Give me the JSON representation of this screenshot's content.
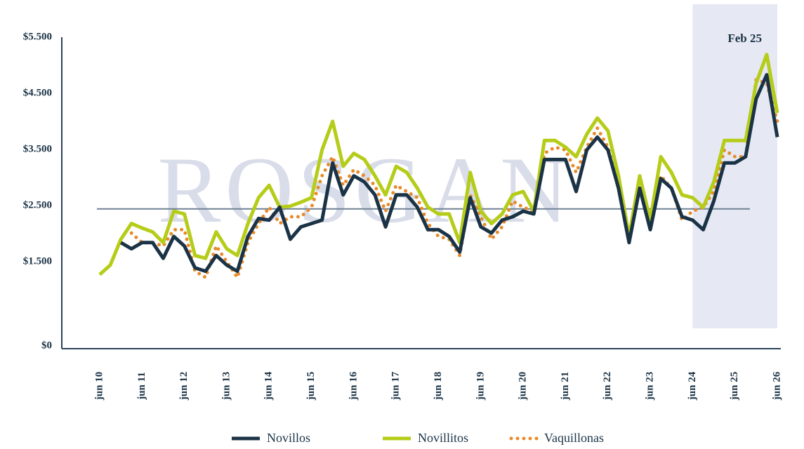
{
  "chart_data": {
    "type": "line",
    "watermark": "ROSGAN",
    "categories": [
      "jun 10",
      null,
      null,
      null,
      "jun 11",
      null,
      null,
      null,
      "jun 12",
      null,
      null,
      null,
      "jun 13",
      null,
      null,
      null,
      "jun 14",
      null,
      null,
      null,
      "jun 15",
      null,
      null,
      null,
      "jun 16",
      null,
      null,
      null,
      "jun 17",
      null,
      null,
      null,
      "jun 18",
      null,
      null,
      null,
      "jun 19",
      null,
      null,
      null,
      "jun 20",
      null,
      null,
      null,
      "jun 21",
      null,
      null,
      null,
      "jun 22",
      null,
      null,
      null,
      "jun 23",
      null,
      null,
      null,
      "jun 24",
      null,
      null,
      null,
      "jun 25",
      null,
      null,
      null,
      "jun 26"
    ],
    "series": [
      {
        "name": "Novillos",
        "color": "#1b3346",
        "style": "solid",
        "values": [
          null,
          null,
          1840,
          1730,
          1840,
          1840,
          1560,
          1950,
          1780,
          1390,
          1330,
          1610,
          1440,
          1330,
          1950,
          2270,
          2240,
          2470,
          1900,
          2120,
          2180,
          2240,
          3260,
          2690,
          3030,
          2920,
          2690,
          2120,
          2690,
          2690,
          2470,
          2070,
          2070,
          1950,
          1670,
          2640,
          2120,
          2010,
          2240,
          2300,
          2400,
          2350,
          3320,
          3320,
          3320,
          2750,
          3490,
          3720,
          3490,
          2810,
          1840,
          2810,
          2070,
          2980,
          2810,
          2300,
          2240,
          2070,
          2580,
          3260,
          3260,
          3370,
          4400,
          4830,
          3720
        ]
      },
      {
        "name": "Novillitos",
        "color": "#b5cc18",
        "style": "solid",
        "values": [
          1270,
          1440,
          1900,
          2180,
          2100,
          2030,
          1840,
          2400,
          2350,
          1610,
          1560,
          2030,
          1730,
          1610,
          2180,
          2640,
          2860,
          2470,
          2490,
          2560,
          2640,
          3490,
          4000,
          3200,
          3430,
          3320,
          3030,
          2690,
          3200,
          3090,
          2810,
          2470,
          2350,
          2350,
          1840,
          3090,
          2400,
          2180,
          2350,
          2690,
          2750,
          2400,
          3660,
          3660,
          3540,
          3370,
          3770,
          4060,
          3830,
          3030,
          1950,
          3030,
          2240,
          3370,
          3090,
          2690,
          2640,
          2470,
          2920,
          3660,
          3660,
          3660,
          4680,
          5190,
          4150
        ]
      },
      {
        "name": "Vaquillonas",
        "color": "#e88a2a",
        "style": "dotted",
        "values": [
          null,
          null,
          null,
          2010,
          1840,
          1840,
          1780,
          2070,
          2070,
          1330,
          1220,
          1780,
          1500,
          1220,
          1840,
          2180,
          2470,
          2180,
          2300,
          2300,
          2470,
          3030,
          3370,
          2860,
          3140,
          3030,
          2860,
          2400,
          2860,
          2750,
          2640,
          2180,
          1950,
          1900,
          1610,
          2690,
          2300,
          1900,
          2120,
          2580,
          2470,
          2400,
          3430,
          3540,
          3490,
          3090,
          3540,
          3880,
          3540,
          2810,
          1950,
          2810,
          2180,
          3030,
          2810,
          2240,
          2400,
          2470,
          2750,
          3490,
          3370,
          3370,
          4740,
          4680,
          4000
        ]
      }
    ],
    "reference_line": 2440,
    "highlight": {
      "from": "jun 24",
      "to": "jun 26",
      "label": "Feb 25"
    },
    "ylim": [
      0,
      5500
    ],
    "yticks": [
      {
        "value": 0,
        "label": "$0"
      },
      {
        "value": 1500,
        "label": "$1.500"
      },
      {
        "value": 2500,
        "label": "$2.500"
      },
      {
        "value": 3500,
        "label": "$3.500"
      },
      {
        "value": 4500,
        "label": "$4.500"
      },
      {
        "value": 5500,
        "label": "$5.500"
      }
    ]
  }
}
